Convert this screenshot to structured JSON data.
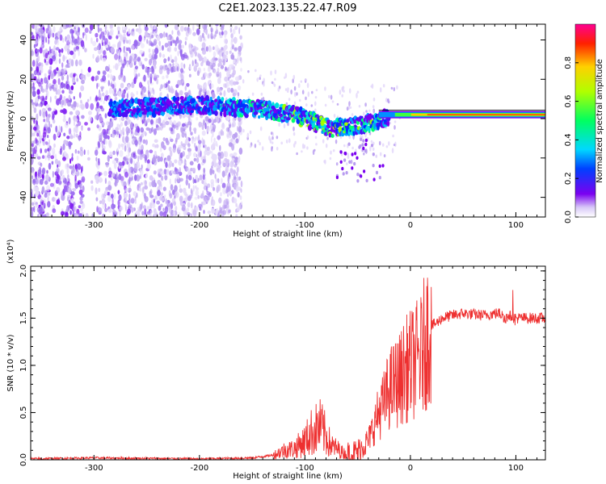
{
  "title": "C2E1.2023.135.22.47.R09",
  "chart_data": [
    {
      "type": "heatmap",
      "xlabel": "Height of straight line (km)",
      "ylabel": "Frequency (Hz)",
      "xlim": [
        -360,
        128
      ],
      "ylim": [
        -50,
        48
      ],
      "xticks": [
        -300,
        -200,
        -100,
        0,
        100
      ],
      "yticks": [
        -40,
        -20,
        0,
        20,
        40
      ],
      "colorbar": {
        "label": "Normalized spectral amplitude",
        "range": [
          0,
          1
        ],
        "ticks": [
          0.0,
          0.2,
          0.4,
          0.6,
          0.8
        ],
        "tick_labels": [
          "0.0",
          "0.2",
          "0.4",
          "0.6",
          "0.8"
        ]
      },
      "ridge_center_hz": {
        "x": [
          -280,
          -240,
          -200,
          -170,
          -150,
          -130,
          -110,
          -90,
          -75,
          -60,
          -45,
          -30,
          -15,
          0,
          20,
          50,
          100,
          128
        ],
        "y": [
          5,
          6,
          7,
          6,
          5,
          4,
          2,
          -2,
          -5,
          -4,
          -3,
          -1,
          2,
          2,
          2,
          2,
          2,
          2
        ]
      }
    },
    {
      "type": "line",
      "xlabel": "Height of straight line (km)",
      "ylabel": "SNR (10 * v/v)",
      "y_multiplier_label": "(x10⁴)",
      "xlim": [
        -360,
        128
      ],
      "ylim": [
        0,
        2.05
      ],
      "xticks": [
        -300,
        -200,
        -100,
        0,
        100
      ],
      "yticks": [
        0.0,
        0.5,
        1.0,
        1.5,
        2.0
      ],
      "ytick_labels": [
        "0.0",
        "0.5",
        "1.0",
        "1.5",
        "2.0"
      ],
      "series": [
        {
          "color": "#ee3030",
          "x": [
            -360,
            -300,
            -200,
            -150,
            -130,
            -120,
            -110,
            -100,
            -95,
            -90,
            -85,
            -80,
            -75,
            -70,
            -60,
            -50,
            -45,
            -40,
            -35,
            -30,
            -25,
            -20,
            -15,
            -10,
            -5,
            0,
            5,
            10,
            15,
            20,
            25,
            30,
            40,
            50,
            60,
            70,
            80,
            85,
            90,
            95,
            100,
            110,
            120,
            128
          ],
          "y": [
            0.01,
            0.02,
            0.01,
            0.02,
            0.05,
            0.1,
            0.12,
            0.2,
            0.28,
            0.32,
            0.35,
            0.25,
            0.15,
            0.12,
            0.05,
            0.08,
            0.15,
            0.2,
            0.35,
            0.5,
            0.6,
            0.75,
            0.8,
            0.85,
            0.95,
            1.0,
            1.05,
            1.1,
            1.3,
            1.42,
            1.45,
            1.5,
            1.53,
            1.55,
            1.54,
            1.53,
            1.55,
            1.55,
            1.5,
            1.52,
            1.5,
            1.5,
            1.5,
            1.5
          ]
        }
      ]
    }
  ]
}
